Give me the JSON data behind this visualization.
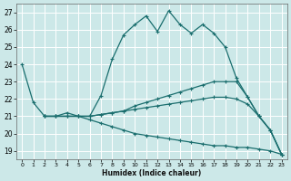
{
  "xlabel": "Humidex (Indice chaleur)",
  "bg_color": "#cce8e8",
  "line_color": "#1a6e6e",
  "grid_color": "#b0d4d4",
  "xlim": [
    -0.5,
    23.5
  ],
  "ylim": [
    18.5,
    27.5
  ],
  "yticks": [
    19,
    20,
    21,
    22,
    23,
    24,
    25,
    26,
    27
  ],
  "xticks": [
    0,
    1,
    2,
    3,
    4,
    5,
    6,
    7,
    8,
    9,
    10,
    11,
    12,
    13,
    14,
    15,
    16,
    17,
    18,
    19,
    20,
    21,
    22,
    23
  ],
  "lines": [
    {
      "x": [
        0,
        1,
        2,
        3,
        4,
        5,
        6,
        7,
        8,
        9,
        10,
        11,
        12,
        13,
        14,
        15,
        16,
        17,
        18,
        19,
        20,
        21,
        22,
        23
      ],
      "y": [
        24.0,
        21.8,
        21.0,
        21.0,
        21.2,
        21.0,
        21.0,
        22.2,
        24.3,
        25.7,
        26.3,
        26.8,
        25.9,
        27.1,
        26.3,
        25.8,
        26.3,
        25.8,
        25.0,
        23.2,
        22.1,
        21.0,
        20.2,
        18.8
      ]
    },
    {
      "x": [
        2,
        3,
        4,
        5,
        6,
        7,
        8,
        9,
        10,
        11,
        12,
        13,
        14,
        15,
        16,
        17,
        18,
        19,
        20,
        21,
        22,
        23
      ],
      "y": [
        21.0,
        21.0,
        21.0,
        21.0,
        21.0,
        21.1,
        21.2,
        21.3,
        21.6,
        21.8,
        22.0,
        22.2,
        22.4,
        22.6,
        22.8,
        23.0,
        23.0,
        23.0,
        22.1,
        21.0,
        20.2,
        18.8
      ]
    },
    {
      "x": [
        2,
        3,
        4,
        5,
        6,
        7,
        8,
        9,
        10,
        11,
        12,
        13,
        14,
        15,
        16,
        17,
        18,
        19,
        20,
        21,
        22,
        23
      ],
      "y": [
        21.0,
        21.0,
        21.0,
        21.0,
        21.0,
        21.1,
        21.2,
        21.3,
        21.4,
        21.5,
        21.6,
        21.7,
        21.8,
        21.9,
        22.0,
        22.1,
        22.1,
        22.0,
        21.7,
        21.0,
        20.2,
        18.8
      ]
    },
    {
      "x": [
        2,
        3,
        4,
        5,
        6,
        7,
        8,
        9,
        10,
        11,
        12,
        13,
        14,
        15,
        16,
        17,
        18,
        19,
        20,
        21,
        22,
        23
      ],
      "y": [
        21.0,
        21.0,
        21.0,
        21.0,
        20.8,
        20.6,
        20.4,
        20.2,
        20.0,
        19.9,
        19.8,
        19.7,
        19.6,
        19.5,
        19.4,
        19.3,
        19.3,
        19.2,
        19.2,
        19.1,
        19.0,
        18.8
      ]
    }
  ]
}
